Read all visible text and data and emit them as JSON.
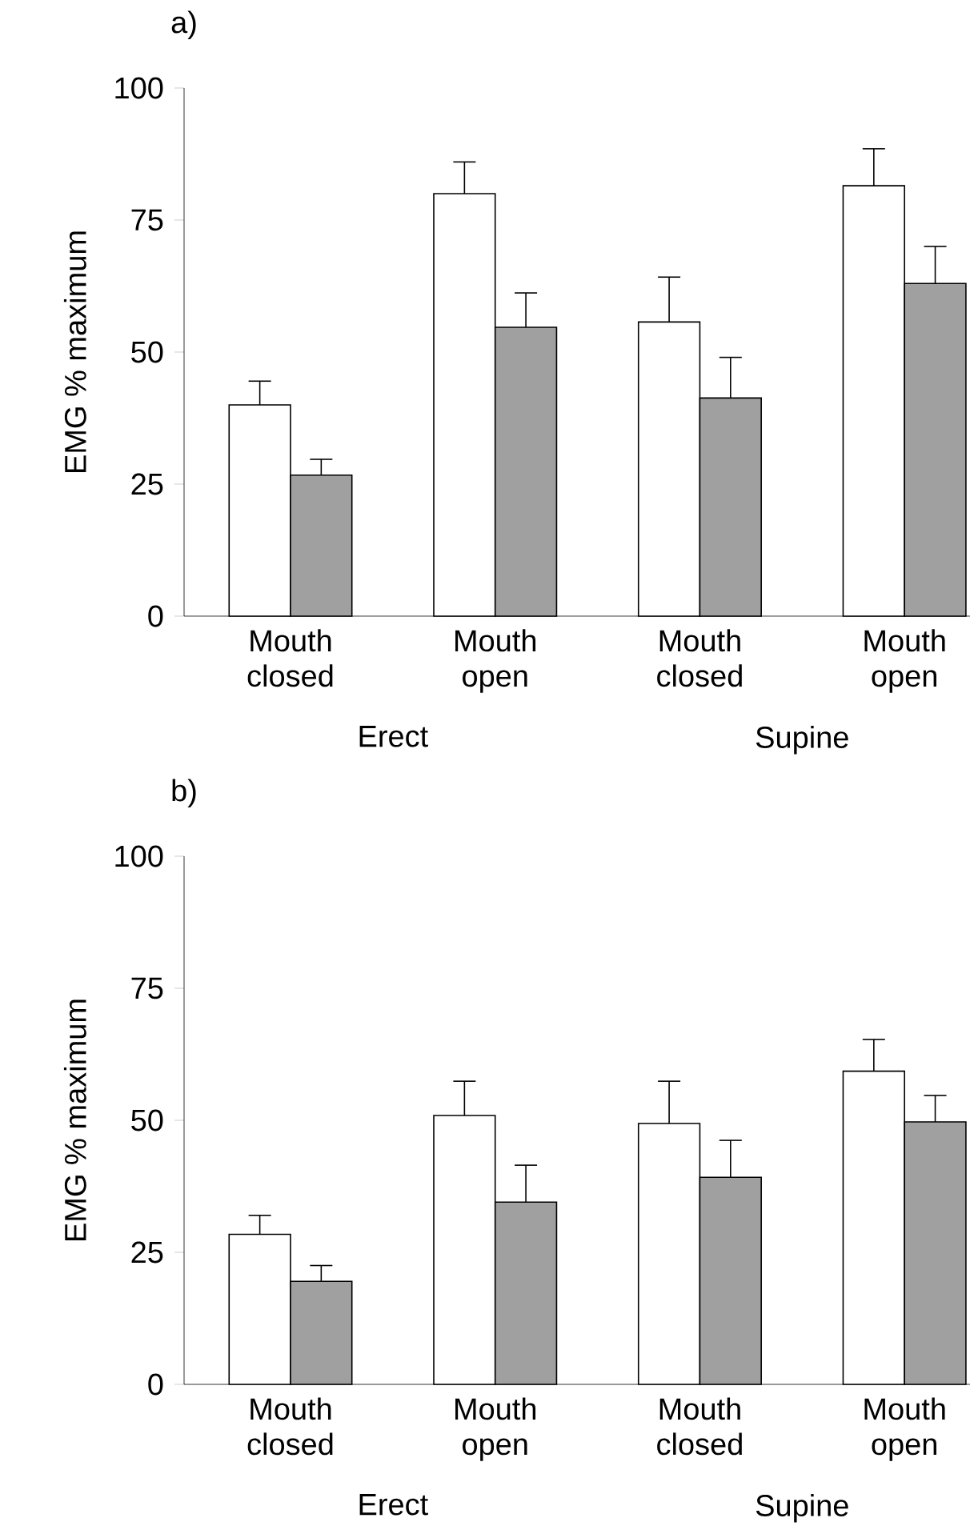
{
  "chart_data": [
    {
      "type": "bar",
      "title": "a)",
      "ylabel": "EMG % maximum",
      "categories": [
        "Mouth closed",
        "Mouth open",
        "Mouth closed",
        "Mouth open"
      ],
      "series": [
        {
          "color": "#ffffff",
          "values": [
            40,
            80,
            55.7,
            81.5
          ],
          "errors": [
            4.5,
            6,
            8.5,
            7
          ]
        },
        {
          "color": "#a0a0a0",
          "values": [
            26.7,
            54.7,
            41.3,
            63
          ],
          "errors": [
            3,
            6.5,
            7.7,
            7
          ]
        }
      ],
      "ylim": [
        0,
        100
      ],
      "yticks": [
        0,
        25,
        50,
        75,
        100
      ],
      "annotations": [
        "Erect",
        "Supine"
      ]
    },
    {
      "type": "bar",
      "title": "b)",
      "ylabel": "EMG % maximum",
      "categories": [
        "Mouth closed",
        "Mouth open",
        "Mouth closed",
        "Mouth open"
      ],
      "series": [
        {
          "color": "#ffffff",
          "values": [
            28.4,
            50.9,
            49.4,
            59.3
          ],
          "errors": [
            3.6,
            6.5,
            8,
            6
          ]
        },
        {
          "color": "#a0a0a0",
          "values": [
            19.5,
            34.5,
            39.2,
            49.7
          ],
          "errors": [
            3,
            7,
            7,
            5
          ]
        }
      ],
      "ylim": [
        0,
        100
      ],
      "yticks": [
        0,
        25,
        50,
        75,
        100
      ],
      "annotations": [
        "Erect",
        "Supine"
      ]
    }
  ]
}
